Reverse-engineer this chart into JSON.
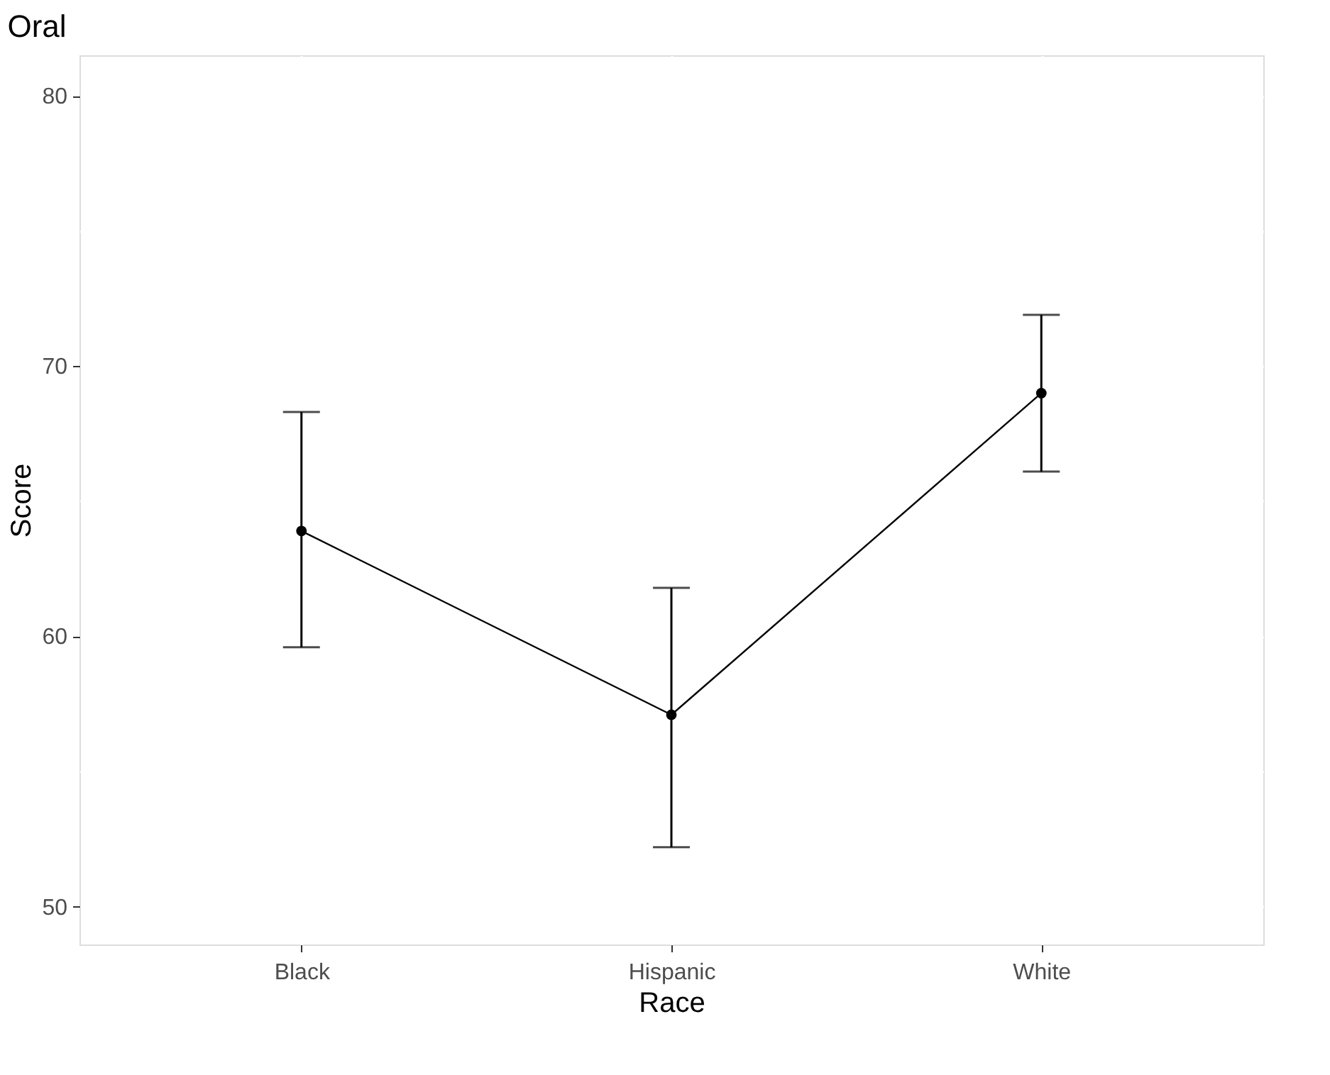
{
  "chart_data": {
    "type": "line",
    "title": "Oral",
    "xlabel": "Race",
    "ylabel": "Score",
    "categories": [
      "Black",
      "Hispanic",
      "White"
    ],
    "series": [
      {
        "color": "#000000",
        "values": [
          63.9,
          57.1,
          69.0
        ],
        "errors": [
          [
            59.6,
            68.3
          ],
          [
            52.2,
            61.8
          ],
          [
            66.1,
            71.9
          ]
        ]
      }
    ],
    "ylim": [
      48.6,
      81.5
    ],
    "yticks": [
      50,
      {
        "value": 55,
        "label": null
      },
      60,
      {
        "value": 65,
        "label": null
      },
      70,
      {
        "value": 75,
        "label": null
      },
      80
    ],
    "grid": true,
    "marker": "circle",
    "line_style": "solid"
  }
}
